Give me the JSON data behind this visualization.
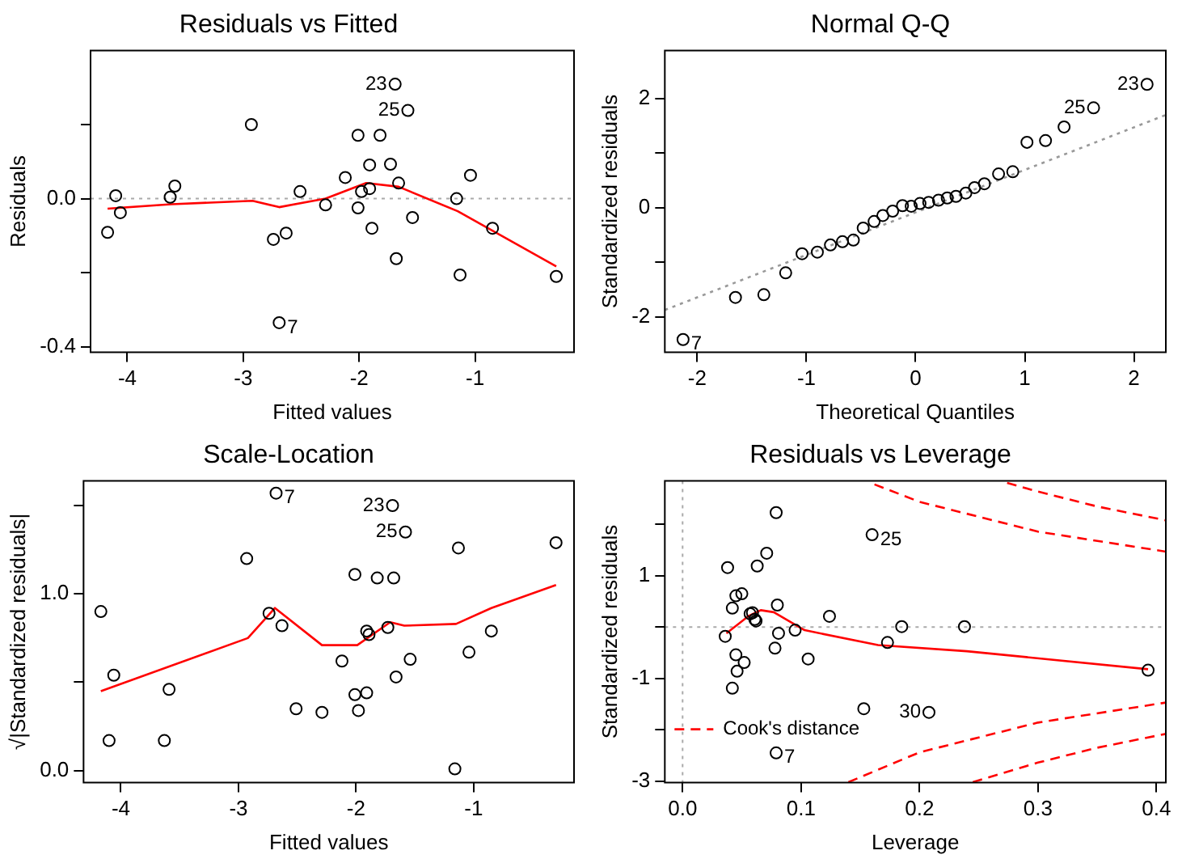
{
  "chart_data": [
    {
      "type": "scatter",
      "title": "Residuals vs Fitted",
      "xlabel": "Fitted values",
      "ylabel": "Residuals",
      "marker": "circle",
      "xlim": [
        -4.317,
        -0.147
      ],
      "ylim": [
        -0.415,
        0.4
      ],
      "xticks": [
        -4,
        -3,
        -2,
        -1
      ],
      "yticks": [
        {
          "value": -0.4,
          "label": "-0.4"
        },
        {
          "value": -0.2,
          "label": null
        },
        {
          "value": 0,
          "label": "0.0"
        },
        {
          "value": 0.2,
          "label": null
        }
      ],
      "series": [
        {
          "color": "#000000",
          "x": [
            -4.17,
            -4.1,
            -4.06,
            -3.63,
            -3.59,
            -2.93,
            -2.74,
            -2.63,
            -2.51,
            -2.29,
            -2.12,
            -2.01,
            -2.01,
            -1.98,
            -1.91,
            -1.91,
            -1.89,
            -1.82,
            -1.73,
            -1.69,
            -1.68,
            -1.66,
            -1.58,
            -1.54,
            -1.16,
            -1.13,
            -1.04,
            -0.85,
            -0.3,
            -2.69
          ],
          "values": [
            -0.091,
            0.008,
            -0.038,
            0.004,
            0.034,
            0.2,
            -0.11,
            -0.093,
            0.019,
            -0.017,
            0.057,
            0.171,
            -0.025,
            0.019,
            0.091,
            0.027,
            -0.08,
            0.171,
            0.093,
            0.309,
            -0.162,
            0.042,
            0.238,
            -0.051,
            0,
            -0.206,
            0.063,
            -0.08,
            -0.21,
            -0.335
          ]
        },
        {
          "type": "line",
          "marker": "none",
          "color": "#ff0000",
          "x": [
            -4.17,
            -3.62,
            -2.92,
            -2.69,
            -2.29,
            -1.94,
            -1.66,
            -1.15,
            -0.3
          ],
          "values": [
            -0.027,
            -0.015,
            -0.006,
            -0.023,
            0,
            0.042,
            0.032,
            -0.034,
            -0.183
          ]
        }
      ],
      "ref_lines": [
        {
          "axis": "y",
          "value": 0,
          "color": "#aaaaaa",
          "line_style": "dotted"
        }
      ],
      "annotations": [
        {
          "text": "23",
          "x": -1.69,
          "y": 0.309
        },
        {
          "text": "25",
          "x": -1.58,
          "y": 0.238
        },
        {
          "text": "7",
          "x": -2.69,
          "y": -0.335
        }
      ]
    },
    {
      "type": "scatter",
      "title": "Normal Q-Q",
      "xlabel": "Theoretical Quantiles",
      "ylabel": "Standardized residuals",
      "marker": "circle",
      "xlim": [
        -2.297,
        2.292
      ],
      "ylim": [
        -2.645,
        2.88
      ],
      "xticks": [
        -2,
        -1,
        0,
        1,
        2
      ],
      "yticks": [
        -2,
        {
          "value": -1,
          "label": null
        },
        0,
        {
          "value": 1,
          "label": null
        },
        2
      ],
      "series": [
        {
          "color": "#000000",
          "x": [
            -2.13,
            -1.65,
            -1.39,
            -1.19,
            -1.04,
            -0.9,
            -0.78,
            -0.67,
            -0.57,
            -0.48,
            -0.38,
            -0.3,
            -0.21,
            -0.12,
            -0.04,
            0.04,
            0.12,
            0.21,
            0.29,
            0.37,
            0.46,
            0.54,
            0.63,
            0.76,
            0.89,
            1.02,
            1.19,
            1.36,
            1.63,
            2.12
          ],
          "values": [
            -2.41,
            -1.64,
            -1.59,
            -1.19,
            -0.84,
            -0.81,
            -0.68,
            -0.62,
            -0.59,
            -0.37,
            -0.25,
            -0.14,
            -0.06,
            0.04,
            0.03,
            0.08,
            0.1,
            0.14,
            0.18,
            0.21,
            0.27,
            0.37,
            0.44,
            0.62,
            0.66,
            1.2,
            1.23,
            1.48,
            1.83,
            2.26
          ]
        },
        {
          "type": "line",
          "marker": "none",
          "line_style": "dotted",
          "color": "#999999",
          "x": [
            -2.297,
            2.292
          ],
          "values": [
            -1.87,
            1.7
          ]
        }
      ],
      "annotations": [
        {
          "text": "23",
          "x": 2.12,
          "y": 2.26
        },
        {
          "text": "25",
          "x": 1.63,
          "y": 1.83
        },
        {
          "text": "7",
          "x": -2.13,
          "y": -2.41
        }
      ]
    },
    {
      "type": "scatter",
      "title": "Scale-Location",
      "xlabel": "Fitted values",
      "ylabel": "√|Standardized residuals|",
      "marker": "circle",
      "xlim": [
        -4.317,
        -0.147
      ],
      "ylim": [
        -0.068,
        1.64
      ],
      "xticks": [
        -4,
        -3,
        -2,
        -1
      ],
      "yticks": [
        {
          "value": 0,
          "label": "0.0"
        },
        {
          "value": 0.5,
          "label": null
        },
        {
          "value": 1,
          "label": "1.0"
        },
        {
          "value": 1.5,
          "label": null
        }
      ],
      "series": [
        {
          "color": "#000000",
          "x": [
            -4.17,
            -4.06,
            -4.1,
            -3.63,
            -3.59,
            -2.93,
            -2.74,
            -2.68,
            -2.63,
            -2.51,
            -2.29,
            -2.12,
            -2.01,
            -2.01,
            -1.98,
            -1.91,
            -1.91,
            -1.89,
            -1.82,
            -1.73,
            -1.69,
            -1.68,
            -1.66,
            -1.58,
            -1.54,
            -1.16,
            -1.13,
            -1.04,
            -0.85,
            -0.3
          ],
          "values": [
            0.9,
            0.54,
            0.17,
            0.17,
            0.46,
            1.2,
            0.89,
            1.57,
            0.82,
            0.35,
            0.33,
            0.62,
            1.11,
            0.43,
            0.34,
            0.79,
            0.44,
            0.77,
            1.09,
            0.81,
            1.5,
            1.09,
            0.53,
            1.35,
            0.63,
            0.01,
            1.26,
            0.67,
            0.79,
            1.29
          ]
        },
        {
          "type": "line",
          "marker": "none",
          "color": "#ff0000",
          "x": [
            -4.17,
            -2.92,
            -2.69,
            -2.29,
            -1.99,
            -1.71,
            -1.59,
            -1.15,
            -0.85,
            -0.3
          ],
          "values": [
            0.45,
            0.75,
            0.92,
            0.71,
            0.71,
            0.84,
            0.82,
            0.83,
            0.92,
            1.05
          ]
        }
      ],
      "annotations": [
        {
          "text": "7",
          "x": -2.68,
          "y": 1.57
        },
        {
          "text": "23",
          "x": -1.69,
          "y": 1.5
        },
        {
          "text": "25",
          "x": -1.58,
          "y": 1.35
        }
      ]
    },
    {
      "type": "scatter",
      "title": "Residuals vs Leverage",
      "xlabel": "Leverage",
      "ylabel": "Standardized residuals",
      "marker": "circle",
      "legend": "bottom left",
      "xlim": [
        -0.015,
        0.408
      ],
      "ylim": [
        -3.03,
        2.85
      ],
      "xticks": [
        {
          "value": 0,
          "label": "0.0"
        },
        0.1,
        0.2,
        0.3,
        0.4
      ],
      "yticks": [
        -3,
        {
          "value": -2,
          "label": null
        },
        -1,
        {
          "value": 0,
          "label": null
        },
        1,
        {
          "value": 2,
          "label": null
        }
      ],
      "series": [
        {
          "color": "#000000",
          "x": [
            0.038,
            0.036,
            0.042,
            0.045,
            0.05,
            0.045,
            0.046,
            0.052,
            0.042,
            0.059,
            0.061,
            0.063,
            0.071,
            0.079,
            0.08,
            0.081,
            0.078,
            0.095,
            0.106,
            0.124,
            0.16,
            0.153,
            0.173,
            0.185,
            0.208,
            0.238,
            0.393,
            0.079,
            0.057,
            0.062
          ],
          "values": [
            1.16,
            -0.18,
            0.37,
            0.61,
            0.65,
            -0.54,
            -0.86,
            -0.69,
            -1.19,
            0.28,
            0.15,
            1.19,
            1.44,
            2.23,
            0.43,
            -0.12,
            -0.41,
            -0.06,
            -0.62,
            0.21,
            1.8,
            -1.59,
            -0.3,
            0.01,
            -1.66,
            0.01,
            -0.84,
            -2.45,
            0.26,
            0.12
          ]
        },
        {
          "type": "line",
          "marker": "none",
          "color": "#ff0000",
          "x": [
            0.037,
            0.056,
            0.066,
            0.077,
            0.103,
            0.165,
            0.24,
            0.393
          ],
          "values": [
            -0.12,
            0.22,
            0.33,
            0.29,
            -0.06,
            -0.35,
            -0.47,
            -0.82
          ]
        },
        {
          "type": "line",
          "marker": "none",
          "name": "Cook's distance",
          "line_style": "dashed",
          "color": "#ff0000",
          "x": [
            0.162,
            0.2,
            0.3,
            0.408
          ],
          "values": [
            2.78,
            2.44,
            1.86,
            1.47
          ]
        },
        {
          "type": "line",
          "marker": "none",
          "line_style": "dashed",
          "color": "#ff0000",
          "x": [
            0.274,
            0.3,
            0.35,
            0.408
          ],
          "values": [
            2.81,
            2.64,
            2.35,
            2.08
          ]
        },
        {
          "type": "line",
          "marker": "none",
          "line_style": "dashed",
          "color": "#ff0000",
          "x": [
            0.14,
            0.2,
            0.3,
            0.408
          ],
          "values": [
            -3.02,
            -2.44,
            -1.86,
            -1.47
          ]
        },
        {
          "type": "line",
          "marker": "none",
          "line_style": "dashed",
          "color": "#ff0000",
          "x": [
            0.245,
            0.3,
            0.35,
            0.408
          ],
          "values": [
            -3.02,
            -2.64,
            -2.35,
            -2.08
          ]
        }
      ],
      "ref_lines": [
        {
          "axis": "y",
          "value": 0,
          "color": "#aaaaaa",
          "line_style": "dotted"
        },
        {
          "axis": "x",
          "value": 0,
          "color": "#aaaaaa",
          "line_style": "dotted"
        }
      ],
      "annotations": [
        {
          "text": "25",
          "x": 0.16,
          "y": 1.8
        },
        {
          "text": "30",
          "x": 0.208,
          "y": -1.66
        },
        {
          "text": "7",
          "x": 0.079,
          "y": -2.45
        }
      ]
    }
  ]
}
